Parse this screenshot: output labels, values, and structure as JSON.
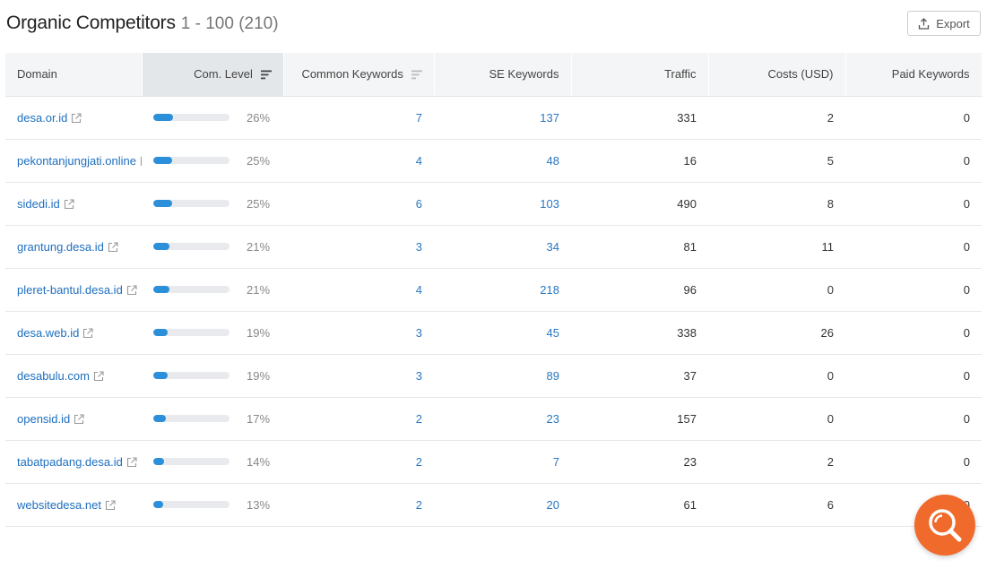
{
  "header": {
    "title": "Organic Competitors",
    "range": "1 - 100 (210)",
    "export_label": "Export"
  },
  "columns": {
    "domain": "Domain",
    "com_level": "Com. Level",
    "common_keywords": "Common Keywords",
    "se_keywords": "SE Keywords",
    "traffic": "Traffic",
    "costs": "Costs (USD)",
    "paid_keywords": "Paid Keywords"
  },
  "rows": [
    {
      "domain": "desa.or.id",
      "level": 26,
      "level_label": "26%",
      "common": "7",
      "se": "137",
      "traffic": "331",
      "costs": "2",
      "paid": "0"
    },
    {
      "domain": "pekontanjungjati.online",
      "level": 25,
      "level_label": "25%",
      "common": "4",
      "se": "48",
      "traffic": "16",
      "costs": "5",
      "paid": "0"
    },
    {
      "domain": "sidedi.id",
      "level": 25,
      "level_label": "25%",
      "common": "6",
      "se": "103",
      "traffic": "490",
      "costs": "8",
      "paid": "0"
    },
    {
      "domain": "grantung.desa.id",
      "level": 21,
      "level_label": "21%",
      "common": "3",
      "se": "34",
      "traffic": "81",
      "costs": "11",
      "paid": "0"
    },
    {
      "domain": "pleret-bantul.desa.id",
      "level": 21,
      "level_label": "21%",
      "common": "4",
      "se": "218",
      "traffic": "96",
      "costs": "0",
      "paid": "0"
    },
    {
      "domain": "desa.web.id",
      "level": 19,
      "level_label": "19%",
      "common": "3",
      "se": "45",
      "traffic": "338",
      "costs": "26",
      "paid": "0"
    },
    {
      "domain": "desabulu.com",
      "level": 19,
      "level_label": "19%",
      "common": "3",
      "se": "89",
      "traffic": "37",
      "costs": "0",
      "paid": "0"
    },
    {
      "domain": "opensid.id",
      "level": 17,
      "level_label": "17%",
      "common": "2",
      "se": "23",
      "traffic": "157",
      "costs": "0",
      "paid": "0"
    },
    {
      "domain": "tabatpadang.desa.id",
      "level": 14,
      "level_label": "14%",
      "common": "2",
      "se": "7",
      "traffic": "23",
      "costs": "2",
      "paid": "0"
    },
    {
      "domain": "websitedesa.net",
      "level": 13,
      "level_label": "13%",
      "common": "2",
      "se": "20",
      "traffic": "61",
      "costs": "6",
      "paid": "0"
    }
  ],
  "icons": {
    "export": "upload-icon",
    "external": "external-link-icon",
    "sort": "sort-lines-icon",
    "fab": "magnifier-icon"
  },
  "colors": {
    "link": "#1e6fbf",
    "bar": "#2b8fd9",
    "fab": "#f06a2c"
  }
}
